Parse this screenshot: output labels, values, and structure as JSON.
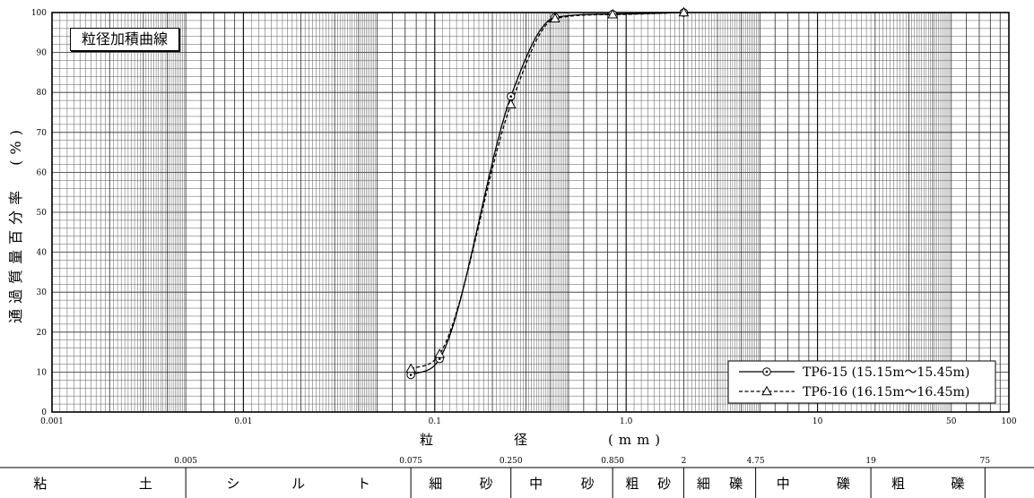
{
  "chart_data": {
    "type": "line",
    "title": "粒径加積曲線",
    "xlabel": "粒　　　　径　　　　(mm)",
    "ylabel": "通過質量百分率　(%)",
    "x_scale": "log",
    "xlim": [
      0.001,
      100
    ],
    "ylim": [
      0,
      100
    ],
    "x_ticks": [
      {
        "value": 0.001,
        "label": "0.001"
      },
      {
        "value": 0.01,
        "label": "0.01"
      },
      {
        "value": 0.1,
        "label": "0.1"
      },
      {
        "value": 1,
        "label": "1.0"
      },
      {
        "value": 10,
        "label": "10"
      },
      {
        "value": 50,
        "label": "50"
      },
      {
        "value": 100,
        "label": "100"
      }
    ],
    "y_ticks": [
      {
        "value": 0,
        "label": "0"
      },
      {
        "value": 10,
        "label": "10"
      },
      {
        "value": 20,
        "label": "20"
      },
      {
        "value": 30,
        "label": "30"
      },
      {
        "value": 40,
        "label": "40"
      },
      {
        "value": 50,
        "label": "50"
      },
      {
        "value": 60,
        "label": "60"
      },
      {
        "value": 70,
        "label": "70"
      },
      {
        "value": 80,
        "label": "80"
      },
      {
        "value": 90,
        "label": "90"
      },
      {
        "value": 100,
        "label": "100"
      }
    ],
    "grid": true,
    "legend_position": "bottom-right",
    "series": [
      {
        "name": "TP6-15 (15.15m～15.45m)",
        "marker": "circle",
        "line_style": "solid",
        "x": [
          0.075,
          0.106,
          0.25,
          0.425,
          0.85,
          2
        ],
        "y": [
          9.3,
          13.3,
          79.0,
          98.8,
          99.6,
          100.0
        ]
      },
      {
        "name": "TP6-16 (16.15m～16.45m)",
        "marker": "triangle",
        "line_style": "dashed",
        "x": [
          0.075,
          0.106,
          0.25,
          0.425,
          0.85,
          2
        ],
        "y": [
          10.8,
          14.5,
          77.0,
          98.5,
          99.5,
          100.0
        ]
      }
    ]
  },
  "soil_classification": {
    "boundaries": [
      {
        "value": 0.005,
        "label": "0.005"
      },
      {
        "value": 0.075,
        "label": "0.075"
      },
      {
        "value": 0.25,
        "label": "0.250"
      },
      {
        "value": 0.85,
        "label": "0.850"
      },
      {
        "value": 2,
        "label": "2"
      },
      {
        "value": 4.75,
        "label": "4.75"
      },
      {
        "value": 19,
        "label": "19"
      },
      {
        "value": 75,
        "label": "75"
      }
    ],
    "classes": [
      "粘土",
      "シルト",
      "細砂",
      "中砂",
      "粗砂",
      "細礫",
      "中礫",
      "粗礫"
    ]
  }
}
